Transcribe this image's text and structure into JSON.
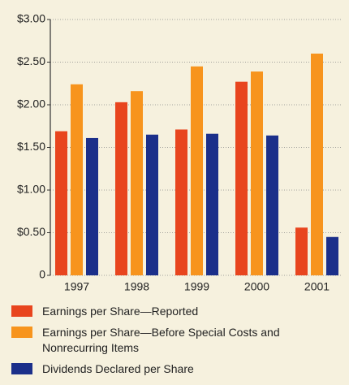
{
  "chart_data": {
    "type": "bar",
    "categories": [
      "1997",
      "1998",
      "1999",
      "2000",
      "2001"
    ],
    "series": [
      {
        "name": "Earnings per Share—Reported",
        "color": "#e8451e",
        "values": [
          1.69,
          2.03,
          1.71,
          2.27,
          0.56
        ]
      },
      {
        "name": "Earnings per Share—Before Special Costs and Nonrecurring Items",
        "color": "#f7941d",
        "values": [
          2.24,
          2.16,
          2.45,
          2.39,
          2.6
        ]
      },
      {
        "name": "Dividends Declared per Share",
        "color": "#1b2f8a",
        "values": [
          1.61,
          1.65,
          1.66,
          1.64,
          0.45
        ]
      }
    ],
    "ylim": [
      0,
      3
    ],
    "yticks": [
      0,
      {
        "value": 0.5,
        "label": "$0.50"
      },
      {
        "value": 1,
        "label": "$1.00"
      },
      {
        "value": 1.5,
        "label": "$1.50"
      },
      {
        "value": 2,
        "label": "$2.00"
      },
      {
        "value": 2.5,
        "label": "$2.50"
      },
      {
        "value": 3,
        "label": "$3.00"
      }
    ],
    "grid": true
  }
}
